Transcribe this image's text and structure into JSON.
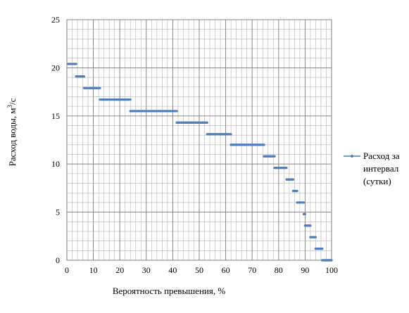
{
  "chart_data": {
    "type": "line",
    "title": "",
    "xlabel": "Вероятность превышения, %",
    "ylabel_main": "Расход воды, м",
    "ylabel_sup": "3",
    "ylabel_tail": "/с",
    "xlim": [
      0,
      100
    ],
    "ylim": [
      0,
      25
    ],
    "xticks": [
      0,
      10,
      20,
      30,
      40,
      50,
      60,
      70,
      80,
      90,
      100
    ],
    "yticks": [
      0,
      5,
      10,
      15,
      20,
      25
    ],
    "minor_x_step": 2,
    "minor_y_step": 1,
    "grid": true,
    "legend_position": "right",
    "series": [
      {
        "name_lines": [
          "Расход за",
          "интервал",
          "(сутки)"
        ],
        "color": "#4F7FBF",
        "segments": [
          {
            "x0": 0.5,
            "x1": 3.5,
            "y": 20.4
          },
          {
            "x0": 3.5,
            "x1": 6.5,
            "y": 19.1
          },
          {
            "x0": 6.5,
            "x1": 12.5,
            "y": 17.9
          },
          {
            "x0": 12.5,
            "x1": 24,
            "y": 16.7
          },
          {
            "x0": 24,
            "x1": 41.5,
            "y": 15.5
          },
          {
            "x0": 41.5,
            "x1": 53,
            "y": 14.3
          },
          {
            "x0": 53,
            "x1": 62,
            "y": 13.1
          },
          {
            "x0": 62,
            "x1": 74.5,
            "y": 12.0
          },
          {
            "x0": 74.5,
            "x1": 78.5,
            "y": 10.8
          },
          {
            "x0": 78.5,
            "x1": 83,
            "y": 9.6
          },
          {
            "x0": 83,
            "x1": 85.5,
            "y": 8.4
          },
          {
            "x0": 85.5,
            "x1": 87,
            "y": 7.2
          },
          {
            "x0": 87,
            "x1": 89.5,
            "y": 6.0
          },
          {
            "x0": 89.5,
            "x1": 90,
            "y": 4.8
          },
          {
            "x0": 90,
            "x1": 92,
            "y": 3.6
          },
          {
            "x0": 92,
            "x1": 94,
            "y": 2.4
          },
          {
            "x0": 94,
            "x1": 96.5,
            "y": 1.2
          },
          {
            "x0": 96.5,
            "x1": 100,
            "y": 0.0
          }
        ]
      }
    ]
  }
}
